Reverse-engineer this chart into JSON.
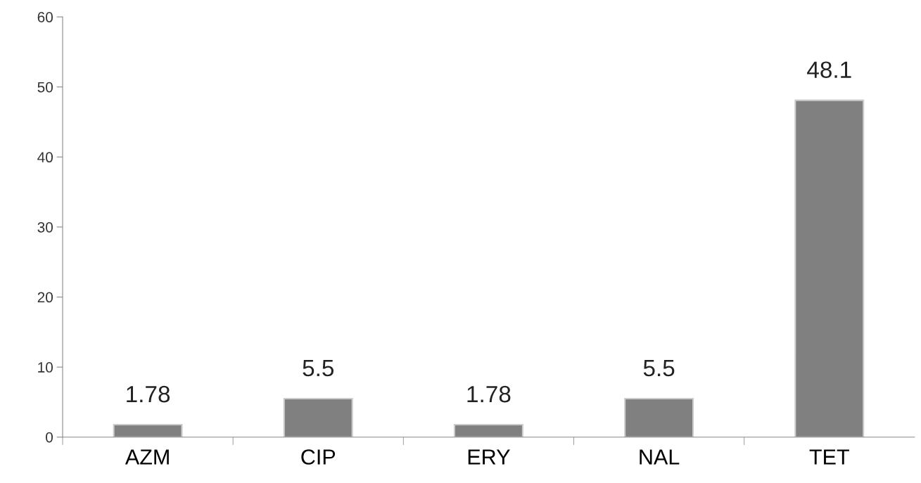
{
  "chart_data": {
    "type": "bar",
    "categories": [
      "AZM",
      "CIP",
      "ERY",
      "NAL",
      "TET"
    ],
    "values": [
      1.78,
      5.5,
      1.78,
      5.5,
      48.1
    ],
    "color": "#808080",
    "ylim": [
      0,
      60
    ],
    "yticks": [
      0,
      10,
      20,
      30,
      40,
      50,
      60
    ],
    "data_labels": true,
    "grid": false,
    "legend": false
  }
}
